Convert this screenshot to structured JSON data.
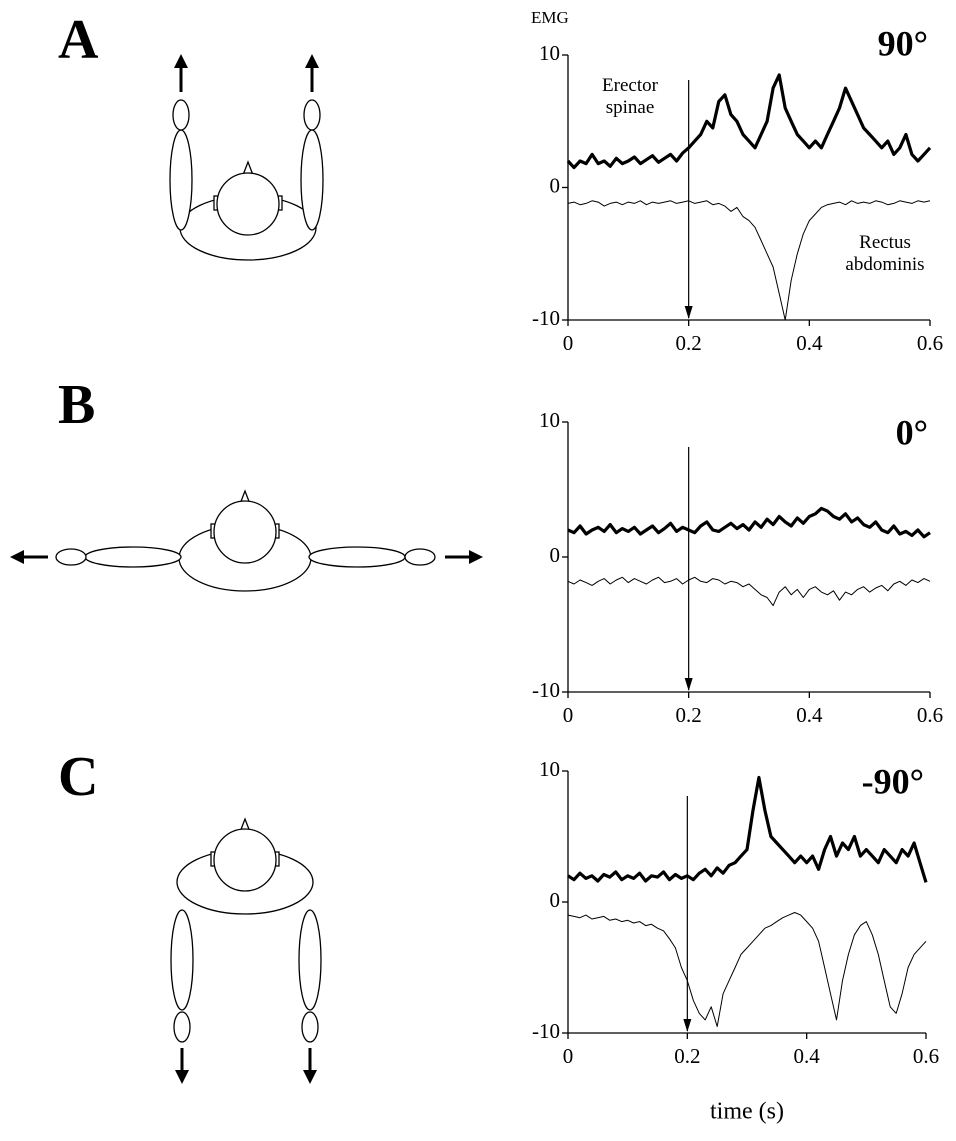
{
  "chart_data": [
    {
      "type": "line",
      "panel": "A",
      "title": "90°",
      "ylabel": "EMG",
      "xlim": [
        0,
        0.6
      ],
      "ylim": [
        -10,
        10
      ],
      "xticks": [
        0,
        0.2,
        0.4,
        0.6
      ],
      "yticks": [
        -10,
        0,
        10
      ],
      "marker_x": 0.2,
      "x": [
        0,
        0.01,
        0.02,
        0.03,
        0.04,
        0.05,
        0.06,
        0.07,
        0.08,
        0.09,
        0.1,
        0.11,
        0.12,
        0.13,
        0.14,
        0.15,
        0.16,
        0.17,
        0.18,
        0.19,
        0.2,
        0.21,
        0.22,
        0.23,
        0.24,
        0.25,
        0.26,
        0.27,
        0.28,
        0.29,
        0.3,
        0.31,
        0.32,
        0.33,
        0.34,
        0.35,
        0.36,
        0.37,
        0.38,
        0.39,
        0.4,
        0.41,
        0.42,
        0.43,
        0.44,
        0.45,
        0.46,
        0.47,
        0.48,
        0.49,
        0.5,
        0.51,
        0.52,
        0.53,
        0.54,
        0.55,
        0.56,
        0.57,
        0.58,
        0.59,
        0.6
      ],
      "series": [
        {
          "name": "Erector spinae",
          "color": "#000000",
          "width": 3.2,
          "values": [
            2,
            1.5,
            2,
            1.8,
            2.5,
            1.8,
            2,
            1.6,
            2.2,
            1.8,
            2,
            2.3,
            1.8,
            2.1,
            2.4,
            1.9,
            2.2,
            2.5,
            2,
            2.6,
            3,
            3.5,
            4,
            5,
            4.5,
            6.5,
            7,
            5.5,
            5,
            4,
            3.5,
            3,
            4,
            5,
            7.5,
            8.5,
            6,
            5,
            4,
            3.5,
            3,
            3.5,
            3,
            4,
            5,
            6,
            7.5,
            6.5,
            5.5,
            4.5,
            4,
            3.5,
            3,
            3.5,
            2.5,
            3,
            4,
            2.5,
            2,
            2.5,
            3
          ]
        },
        {
          "name": "Rectus abdominis",
          "color": "#000000",
          "width": 1,
          "values": [
            -1.2,
            -1.1,
            -1.3,
            -1.2,
            -1,
            -1.1,
            -1.4,
            -1.2,
            -1.1,
            -1.3,
            -1.1,
            -1.2,
            -1,
            -1.3,
            -1.1,
            -1.2,
            -1.1,
            -1,
            -1.2,
            -1.1,
            -1,
            -1.2,
            -1.1,
            -1,
            -1.3,
            -1.2,
            -1.4,
            -1.8,
            -1.5,
            -2.2,
            -2.5,
            -3,
            -4,
            -5,
            -6,
            -8,
            -10,
            -7,
            -5,
            -3.5,
            -2.5,
            -2,
            -1.5,
            -1.3,
            -1.2,
            -1.1,
            -1.3,
            -1,
            -1.2,
            -1.1,
            -1.2,
            -1,
            -1.1,
            -1.3,
            -1.2,
            -1,
            -1.1,
            -1.2,
            -1,
            -1.1,
            -1
          ]
        }
      ]
    },
    {
      "type": "line",
      "panel": "B",
      "title": "0°",
      "xlim": [
        0,
        0.6
      ],
      "ylim": [
        -10,
        10
      ],
      "xticks": [
        0,
        0.2,
        0.4,
        0.6
      ],
      "yticks": [
        -10,
        0,
        10
      ],
      "marker_x": 0.2,
      "x": [
        0,
        0.01,
        0.02,
        0.03,
        0.04,
        0.05,
        0.06,
        0.07,
        0.08,
        0.09,
        0.1,
        0.11,
        0.12,
        0.13,
        0.14,
        0.15,
        0.16,
        0.17,
        0.18,
        0.19,
        0.2,
        0.21,
        0.22,
        0.23,
        0.24,
        0.25,
        0.26,
        0.27,
        0.28,
        0.29,
        0.3,
        0.31,
        0.32,
        0.33,
        0.34,
        0.35,
        0.36,
        0.37,
        0.38,
        0.39,
        0.4,
        0.41,
        0.42,
        0.43,
        0.44,
        0.45,
        0.46,
        0.47,
        0.48,
        0.49,
        0.5,
        0.51,
        0.52,
        0.53,
        0.54,
        0.55,
        0.56,
        0.57,
        0.58,
        0.59,
        0.6
      ],
      "series": [
        {
          "color": "#000000",
          "width": 3.2,
          "values": [
            2,
            1.8,
            2.3,
            1.7,
            2,
            2.2,
            1.9,
            2.4,
            1.8,
            2.1,
            1.9,
            2.2,
            1.7,
            2,
            2.3,
            1.8,
            2.1,
            2.5,
            1.9,
            2.2,
            2,
            1.8,
            2.3,
            2.6,
            2,
            1.9,
            2.2,
            2.5,
            2.1,
            2.4,
            2,
            2.6,
            2.2,
            2.8,
            2.4,
            3,
            2.6,
            2.3,
            2.9,
            2.5,
            3,
            3.2,
            3.6,
            3.4,
            3,
            2.8,
            3.2,
            2.6,
            2.9,
            2.4,
            2.2,
            2.6,
            2,
            1.8,
            2.3,
            1.7,
            1.9,
            1.6,
            2,
            1.5,
            1.8
          ]
        },
        {
          "color": "#000000",
          "width": 1,
          "values": [
            -1.8,
            -2,
            -1.7,
            -1.9,
            -2.1,
            -1.8,
            -1.6,
            -2,
            -1.7,
            -1.5,
            -1.9,
            -1.6,
            -1.8,
            -2,
            -1.7,
            -1.5,
            -1.9,
            -1.8,
            -1.6,
            -2,
            -1.7,
            -1.5,
            -1.8,
            -1.9,
            -1.6,
            -1.7,
            -2,
            -1.8,
            -1.9,
            -2.2,
            -2,
            -2.4,
            -2.8,
            -3,
            -3.6,
            -2.6,
            -2.2,
            -2.8,
            -2.4,
            -3,
            -2.4,
            -2.2,
            -2.6,
            -2.8,
            -2.5,
            -3.2,
            -2.6,
            -2.8,
            -2.4,
            -2.2,
            -2.6,
            -2.3,
            -2.1,
            -2.5,
            -2,
            -1.8,
            -2.1,
            -1.7,
            -1.9,
            -1.6,
            -1.8
          ]
        }
      ]
    },
    {
      "type": "line",
      "panel": "C",
      "title": "-90°",
      "xlabel": "time (s)",
      "xlim": [
        0,
        0.6
      ],
      "ylim": [
        -10,
        10
      ],
      "xticks": [
        0,
        0.2,
        0.4,
        0.6
      ],
      "yticks": [
        -10,
        0,
        10
      ],
      "marker_x": 0.2,
      "x": [
        0,
        0.01,
        0.02,
        0.03,
        0.04,
        0.05,
        0.06,
        0.07,
        0.08,
        0.09,
        0.1,
        0.11,
        0.12,
        0.13,
        0.14,
        0.15,
        0.16,
        0.17,
        0.18,
        0.19,
        0.2,
        0.21,
        0.22,
        0.23,
        0.24,
        0.25,
        0.26,
        0.27,
        0.28,
        0.29,
        0.3,
        0.31,
        0.32,
        0.33,
        0.34,
        0.35,
        0.36,
        0.37,
        0.38,
        0.39,
        0.4,
        0.41,
        0.42,
        0.43,
        0.44,
        0.45,
        0.46,
        0.47,
        0.48,
        0.49,
        0.5,
        0.51,
        0.52,
        0.53,
        0.54,
        0.55,
        0.56,
        0.57,
        0.58,
        0.59,
        0.6
      ],
      "series": [
        {
          "color": "#000000",
          "width": 3.2,
          "values": [
            2,
            1.7,
            2.2,
            1.8,
            2,
            1.6,
            2.1,
            1.9,
            2.3,
            1.7,
            2,
            1.8,
            2.2,
            1.6,
            2,
            1.9,
            2.3,
            1.7,
            2.1,
            1.8,
            2,
            1.7,
            2.2,
            2.5,
            2,
            2.6,
            2.2,
            2.8,
            3,
            3.5,
            4,
            7,
            9.5,
            7,
            5,
            4.5,
            4,
            3.5,
            3,
            3.5,
            3,
            3.5,
            2.5,
            4,
            5,
            3.5,
            4.5,
            4,
            5,
            3.5,
            4,
            3.5,
            3,
            4,
            3.5,
            3,
            4,
            3.5,
            4.5,
            3,
            1.5
          ]
        },
        {
          "color": "#000000",
          "width": 1,
          "values": [
            -1,
            -1.1,
            -1.2,
            -1,
            -1.3,
            -1.2,
            -1.1,
            -1.4,
            -1.3,
            -1.5,
            -1.4,
            -1.6,
            -1.5,
            -1.8,
            -1.7,
            -2,
            -2.2,
            -2.8,
            -3.5,
            -5,
            -6,
            -7.5,
            -8.5,
            -9,
            -8,
            -9.5,
            -7,
            -6,
            -5,
            -4,
            -3.5,
            -3,
            -2.5,
            -2,
            -1.8,
            -1.5,
            -1.2,
            -1,
            -0.8,
            -1,
            -1.5,
            -2,
            -3,
            -5,
            -7,
            -9,
            -6,
            -4,
            -2.5,
            -1.8,
            -1.5,
            -2.5,
            -4,
            -6,
            -8,
            -8.5,
            -7,
            -5,
            -4,
            -3.5,
            -3
          ]
        }
      ]
    }
  ]
}
